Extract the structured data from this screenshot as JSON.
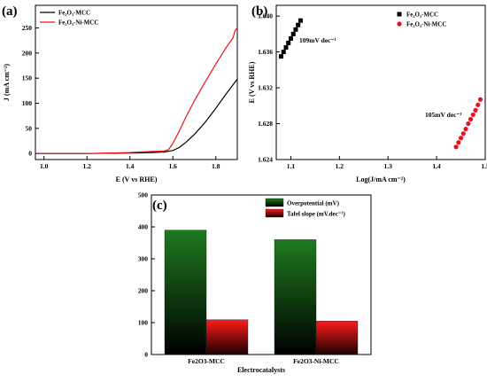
{
  "chart_data": [
    {
      "panel": "(a)",
      "type": "line",
      "xlabel": "E (V vs RHE)",
      "ylabel": "J (mA cm⁻²)",
      "xlim": [
        0.96,
        1.9
      ],
      "ylim": [
        -12,
        295
      ],
      "xticks": [
        1.0,
        1.2,
        1.4,
        1.6,
        1.8
      ],
      "yticks": [
        0,
        50,
        100,
        150,
        200,
        250
      ],
      "legend_position": "top-left",
      "series": [
        {
          "name": "Fe₂O₃-MCC",
          "color": "#000000",
          "x": [
            0.96,
            1.2,
            1.4,
            1.5,
            1.56,
            1.6,
            1.63,
            1.66,
            1.7,
            1.75,
            1.8,
            1.85,
            1.9
          ],
          "y": [
            0,
            0,
            1,
            2,
            3,
            6,
            12,
            22,
            38,
            62,
            90,
            120,
            148
          ]
        },
        {
          "name": "Fe₂O₃-Ni-MCC",
          "color": "#e8141c",
          "x": [
            0.96,
            1.2,
            1.4,
            1.5,
            1.56,
            1.58,
            1.6,
            1.63,
            1.66,
            1.7,
            1.75,
            1.8,
            1.85,
            1.88,
            1.89,
            1.9
          ],
          "y": [
            0,
            0,
            2,
            4,
            5,
            8,
            20,
            45,
            72,
            105,
            142,
            178,
            212,
            230,
            245,
            250
          ]
        }
      ]
    },
    {
      "panel": "(b)",
      "type": "scatter",
      "xlabel": "Log(J/mA cm⁻²)",
      "ylabel": "E (V vs RHE)",
      "xlim": [
        1.07,
        1.5
      ],
      "ylim": [
        1.624,
        1.6412
      ],
      "xticks": [
        1.1,
        1.2,
        1.3,
        1.4,
        1.5
      ],
      "yticks": [
        1.624,
        1.628,
        1.632,
        1.636,
        1.64
      ],
      "legend_position": "top-right",
      "series": [
        {
          "name": "Fe₂O₃-MCC",
          "color": "#000000",
          "marker": "square",
          "x": [
            1.08,
            1.085,
            1.09,
            1.095,
            1.1,
            1.105,
            1.11,
            1.115,
            1.12
          ],
          "y": [
            1.6355,
            1.636,
            1.6365,
            1.637,
            1.6375,
            1.638,
            1.6385,
            1.639,
            1.6395
          ]
        },
        {
          "name": "Fe₂O₃-Ni-MCC",
          "color": "#e8141c",
          "marker": "circle",
          "x": [
            1.44,
            1.445,
            1.45,
            1.455,
            1.46,
            1.465,
            1.47,
            1.475,
            1.48,
            1.485,
            1.49
          ],
          "y": [
            1.6254,
            1.6259,
            1.6264,
            1.6269,
            1.6274,
            1.628,
            1.6285,
            1.629,
            1.6295,
            1.6301,
            1.6307
          ]
        }
      ],
      "annotations": [
        "109mV dec⁻¹",
        "105mV dec⁻¹"
      ]
    },
    {
      "panel": "(c)",
      "type": "bar",
      "xlabel": "Electrocatalysts",
      "ylabel": "",
      "ylim": [
        0,
        500
      ],
      "yticks": [
        0,
        100,
        200,
        300,
        400,
        500
      ],
      "categories": [
        "Fe2O3-MCC",
        "Fe2O3-Ni-MCC"
      ],
      "legend_position": "top-right",
      "series": [
        {
          "name": "Overpotential (mV)",
          "color": "#1f7a1f",
          "values": [
            390,
            360
          ]
        },
        {
          "name": "Tafel slope (mV.dec⁻¹)",
          "color": "#e8141c",
          "values": [
            109,
            105
          ]
        }
      ]
    }
  ]
}
